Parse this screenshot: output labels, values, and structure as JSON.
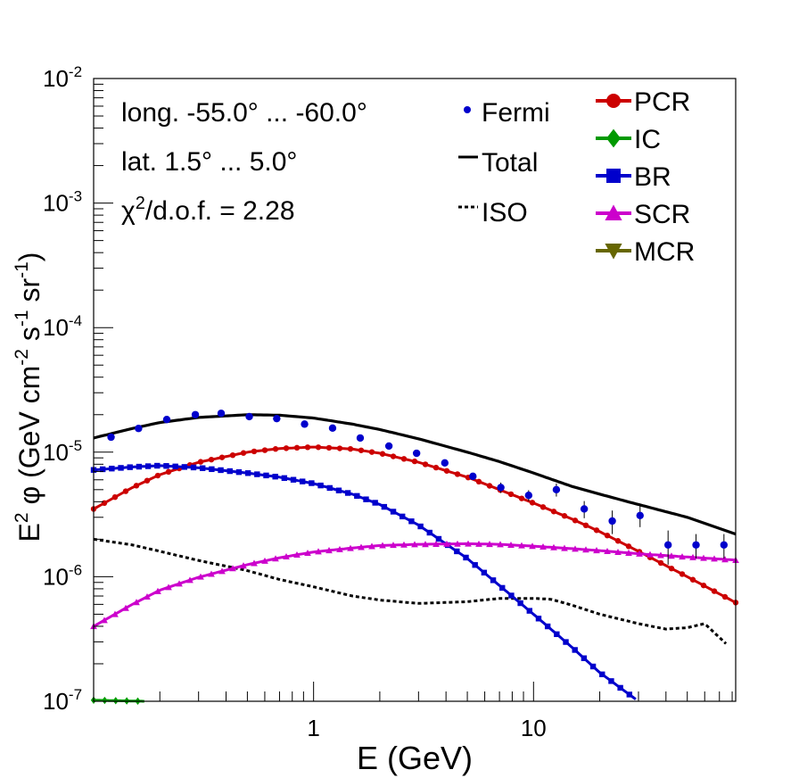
{
  "chart_data": {
    "type": "line",
    "xlabel": "E (GeV)",
    "ylabel_base": "E",
    "ylabel_sup": "2",
    "ylabel_rest": " φ (GeV cm",
    "ylabel_unit_parts": [
      "-2",
      " s",
      "-1",
      " sr",
      "-1",
      ")"
    ],
    "xscale": "log",
    "yscale": "log",
    "xlim": [
      0.1,
      83
    ],
    "ylim": [
      1e-07,
      0.01
    ],
    "x_tick_labels": [
      {
        "value": 1,
        "label": "1"
      },
      {
        "value": 10,
        "label": "10"
      }
    ],
    "y_tick_labels": [
      {
        "value": 1e-07,
        "base": "10",
        "exp": "-7"
      },
      {
        "value": 1e-06,
        "base": "10",
        "exp": "-6"
      },
      {
        "value": 1e-05,
        "base": "10",
        "exp": "-5"
      },
      {
        "value": 0.0001,
        "base": "10",
        "exp": "-4"
      },
      {
        "value": 0.001,
        "base": "10",
        "exp": "-3"
      },
      {
        "value": 0.01,
        "base": "10",
        "exp": "-2"
      }
    ],
    "annotations": {
      "longitude": "long. -55.0° ... -60.0°",
      "latitude": "lat. 1.5° ... 5.0°",
      "chi2_prefix": "χ",
      "chi2_sup": "2",
      "chi2_rest": "/d.o.f. = 2.28"
    },
    "legend": [
      {
        "label": "Fermi",
        "color": "#0000cc",
        "marker": "circle-small",
        "line": "none"
      },
      {
        "label": "Total",
        "color": "#000000",
        "marker": "none",
        "line": "solid"
      },
      {
        "label": "ISO",
        "color": "#000000",
        "marker": "none",
        "line": "dotted"
      },
      {
        "label": "PCR",
        "color": "#cc0000",
        "marker": "circle",
        "line": "solid"
      },
      {
        "label": "IC",
        "color": "#009900",
        "marker": "diamond",
        "line": "solid"
      },
      {
        "label": "BR",
        "color": "#0000cc",
        "marker": "square",
        "line": "solid"
      },
      {
        "label": "SCR",
        "color": "#cc00cc",
        "marker": "triangle-up",
        "line": "solid"
      },
      {
        "label": "MCR",
        "color": "#666600",
        "marker": "triangle-down",
        "line": "solid"
      }
    ],
    "fermi_points": {
      "x": [
        0.12,
        0.16,
        0.215,
        0.29,
        0.38,
        0.51,
        0.68,
        0.91,
        1.22,
        1.63,
        2.2,
        2.94,
        3.95,
        5.3,
        7.1,
        9.5,
        12.7,
        17.0,
        22.8,
        30.5,
        40.9,
        54.8,
        73.4
      ],
      "y": [
        1.32e-05,
        1.55e-05,
        1.83e-05,
        2e-05,
        2.05e-05,
        1.93e-05,
        1.86e-05,
        1.68e-05,
        1.56e-05,
        1.3e-05,
        1.12e-05,
        9.8e-06,
        8.2e-06,
        6.4e-06,
        5.2e-06,
        4.5e-06,
        5e-06,
        3.5e-06,
        2.8e-06,
        3.1e-06,
        1.8e-06,
        1.8e-06,
        1.8e-06
      ],
      "err": [
        0,
        0,
        0,
        0,
        0,
        0,
        0,
        0,
        0,
        0,
        0,
        0,
        0,
        3e-07,
        5e-07,
        4.5e-07,
        6e-07,
        5.5e-07,
        6e-07,
        6e-07,
        5.5e-07,
        4e-07,
        4e-07
      ]
    },
    "series": [
      {
        "name": "Total",
        "color": "#000000",
        "style": "solid",
        "x": [
          0.1,
          0.15,
          0.2,
          0.3,
          0.5,
          0.7,
          1.0,
          1.5,
          2.0,
          3.0,
          5.0,
          7.0,
          10.0,
          15.0,
          20.0,
          30.0,
          50.0,
          83.0
        ],
        "y": [
          1.3e-05,
          1.55e-05,
          1.73e-05,
          1.9e-05,
          2e-05,
          1.98e-05,
          1.88e-05,
          1.68e-05,
          1.52e-05,
          1.28e-05,
          1e-05,
          8.4e-06,
          6.8e-06,
          5.3e-06,
          4.6e-06,
          3.8e-06,
          3e-06,
          2.2e-06
        ]
      },
      {
        "name": "ISO",
        "color": "#000000",
        "style": "dotted",
        "x": [
          0.1,
          0.15,
          0.2,
          0.3,
          0.5,
          0.7,
          1.0,
          1.5,
          2.0,
          3.0,
          5.0,
          7.0,
          10.0,
          12.0,
          15.0,
          20.0,
          30.0,
          40.0,
          50.0,
          60.0,
          75.0
        ],
        "y": [
          2e-06,
          1.8e-06,
          1.6e-06,
          1.35e-06,
          1.12e-06,
          9.5e-07,
          8.3e-07,
          7e-07,
          6.5e-07,
          6.1e-07,
          6.3e-07,
          6.7e-07,
          6.7e-07,
          6.6e-07,
          5.9e-07,
          5e-07,
          4.2e-07,
          3.8e-07,
          3.9e-07,
          4.2e-07,
          2.9e-07
        ]
      },
      {
        "name": "PCR",
        "color": "#cc0000",
        "style": "solid",
        "x": [
          0.1,
          0.15,
          0.2,
          0.3,
          0.5,
          0.7,
          1.0,
          1.5,
          2.0,
          3.0,
          5.0,
          7.0,
          10.0,
          15.0,
          20.0,
          30.0,
          50.0,
          83.0
        ],
        "y": [
          3.5e-06,
          5.2e-06,
          6.6e-06,
          8.3e-06,
          1e-05,
          1.07e-05,
          1.1e-05,
          1.06e-05,
          9.8e-06,
          8.3e-06,
          6.3e-06,
          5e-06,
          3.9e-06,
          2.9e-06,
          2.3e-06,
          1.6e-06,
          1e-06,
          6.2e-07
        ]
      },
      {
        "name": "IC",
        "color": "#009900",
        "style": "solid",
        "x": [
          0.1,
          0.13,
          0.17,
          0.2
        ],
        "y": [
          1.02e-07,
          1.01e-07,
          1e-07,
          9.9e-08
        ]
      },
      {
        "name": "BR",
        "color": "#0000cc",
        "style": "solid",
        "x": [
          0.1,
          0.15,
          0.2,
          0.3,
          0.5,
          0.7,
          1.0,
          1.5,
          2.0,
          3.0,
          5.0,
          7.0,
          10.0,
          15.0,
          20.0,
          30.0
        ],
        "y": [
          7.2e-06,
          7.6e-06,
          7.8e-06,
          7.5e-06,
          6.8e-06,
          6.3e-06,
          5.6e-06,
          4.6e-06,
          3.8e-06,
          2.6e-06,
          1.4e-06,
          8.5e-07,
          5e-07,
          2.7e-07,
          1.7e-07,
          1e-07
        ]
      },
      {
        "name": "SCR",
        "color": "#cc00cc",
        "style": "solid",
        "x": [
          0.1,
          0.15,
          0.2,
          0.3,
          0.5,
          0.7,
          1.0,
          1.5,
          2.0,
          3.0,
          5.0,
          7.0,
          10.0,
          15.0,
          20.0,
          30.0,
          50.0,
          83.0
        ],
        "y": [
          4e-07,
          6e-07,
          7.8e-07,
          9.9e-07,
          1.25e-06,
          1.42e-06,
          1.58e-06,
          1.7e-06,
          1.78e-06,
          1.82e-06,
          1.84e-06,
          1.82e-06,
          1.76e-06,
          1.68e-06,
          1.62e-06,
          1.53e-06,
          1.44e-06,
          1.36e-06
        ]
      }
    ]
  }
}
